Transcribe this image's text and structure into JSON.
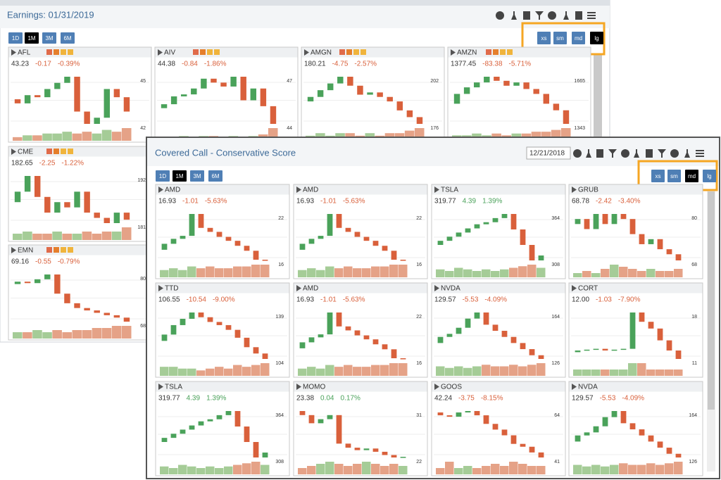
{
  "back": {
    "title": "Earnings: 01/31/2019",
    "periods": [
      "1D",
      "1M",
      "3M",
      "6M"
    ],
    "active_period": 1,
    "sizes": [
      "xs",
      "sm",
      "md",
      "lg"
    ],
    "active_size": 3,
    "tiles": [
      {
        "ticker": "AFL",
        "price": "43.23",
        "change": "-0.17",
        "pct": "-0.39%",
        "high": "45",
        "low": "42",
        "closes": [
          43.8,
          43.6,
          44.0,
          43.9,
          44.3,
          44.6,
          44.9,
          43.2,
          42.6,
          42.9,
          44.3,
          43.9,
          43.2
        ],
        "volumes": [
          2,
          3,
          3,
          4,
          4,
          5,
          4,
          5,
          4,
          6,
          5,
          7
        ]
      },
      {
        "ticker": "AIV",
        "price": "44.38",
        "change": "-0.84",
        "pct": "-1.86%",
        "high": "47",
        "low": "44",
        "closes": [
          45.2,
          45.4,
          45.8,
          45.9,
          46.2,
          46.7,
          46.5,
          46.3,
          46.8,
          45.6,
          46.2,
          45.3,
          44.4
        ],
        "volumes": [
          2,
          2,
          3,
          2,
          3,
          3,
          2,
          3,
          2,
          3,
          4,
          8
        ]
      },
      {
        "ticker": "AMGN",
        "price": "180.21",
        "change": "-4.75",
        "pct": "-2.57%",
        "high": "202",
        "low": "176",
        "closes": [
          190,
          192,
          195,
          198,
          201,
          197,
          193,
          194,
          192,
          190,
          186,
          183,
          180
        ],
        "volumes": [
          2,
          3,
          2,
          3,
          3,
          2,
          3,
          2,
          3,
          3,
          4,
          5
        ]
      },
      {
        "ticker": "AMZN",
        "price": "1377.45",
        "change": "-83.38",
        "pct": "-5.71%",
        "high": "1665",
        "low": "1343",
        "closes": [
          1500,
          1560,
          1600,
          1630,
          1665,
          1640,
          1610,
          1630,
          1590,
          1560,
          1500,
          1460,
          1377
        ],
        "volumes": [
          3,
          3,
          4,
          3,
          4,
          3,
          4,
          4,
          5,
          5,
          6,
          7
        ]
      },
      {
        "ticker": "CME",
        "price": "182.65",
        "change": "-2.25",
        "pct": "-1.22%",
        "high": "192",
        "low": "181",
        "closes": [
          186,
          188,
          191,
          187,
          184,
          186,
          185,
          188,
          184,
          183,
          182,
          184,
          182.65
        ],
        "volumes": [
          3,
          4,
          3,
          3,
          4,
          3,
          3,
          4,
          3,
          4,
          4,
          6
        ]
      },
      {
        "ticker": "EMN",
        "price": "69.16",
        "change": "-0.55",
        "pct": "-0.79%",
        "high": "80",
        "low": "68",
        "closes": [
          77,
          77.5,
          77.2,
          78,
          79,
          75,
          73,
          72,
          71.5,
          71,
          70.5,
          70,
          69.16
        ],
        "volumes": [
          3,
          3,
          4,
          3,
          4,
          3,
          4,
          4,
          5,
          5,
          6,
          6
        ]
      }
    ]
  },
  "front": {
    "title": "Covered Call - Conservative Score",
    "date": "12/21/2018",
    "periods": [
      "1D",
      "1M",
      "3M",
      "6M"
    ],
    "active_period": 1,
    "sizes": [
      "xs",
      "sm",
      "md",
      "lg"
    ],
    "active_size": 2,
    "tiles": [
      {
        "ticker": "AMD",
        "price": "16.93",
        "change": "-1.01",
        "pct": "-5.63%",
        "high": "22",
        "low": "16",
        "closes": [
          18.0,
          18.6,
          19.1,
          19.4,
          21.6,
          20.2,
          19.8,
          19.3,
          18.9,
          18.4,
          17.9,
          17.0,
          16.93
        ],
        "volumes": [
          4,
          5,
          4,
          6,
          5,
          6,
          5,
          5,
          6,
          6,
          7,
          7
        ]
      },
      {
        "ticker": "AMD",
        "price": "16.93",
        "change": "-1.01",
        "pct": "-5.63%",
        "high": "22",
        "low": "16",
        "closes": [
          18.0,
          18.6,
          19.1,
          19.4,
          21.6,
          20.2,
          19.8,
          19.3,
          18.9,
          18.4,
          17.9,
          17.0,
          16.93
        ],
        "volumes": [
          4,
          5,
          4,
          6,
          5,
          6,
          5,
          5,
          6,
          6,
          7,
          7
        ]
      },
      {
        "ticker": "TSLA",
        "price": "319.77",
        "change": "4.39",
        "pct": "1.39%",
        "high": "364",
        "low": "308",
        "closes": [
          330,
          334,
          338,
          342,
          346,
          350,
          352,
          356,
          360,
          345,
          330,
          315,
          319.77
        ],
        "volumes": [
          5,
          4,
          6,
          5,
          4,
          5,
          4,
          5,
          6,
          7,
          8,
          6
        ]
      },
      {
        "ticker": "GRUB",
        "price": "68.78",
        "change": "-2.42",
        "pct": "-3.40%",
        "high": "80",
        "low": "68",
        "closes": [
          76,
          77,
          75,
          78,
          76,
          78,
          77,
          74,
          72,
          73,
          71,
          70,
          68.78
        ],
        "volumes": [
          2,
          3,
          2,
          4,
          6,
          5,
          4,
          3,
          4,
          3,
          3,
          4
        ]
      },
      {
        "ticker": "TTD",
        "price": "106.55",
        "change": "-10.54",
        "pct": "-9.00%",
        "high": "139",
        "low": "104",
        "closes": [
          118,
          122,
          128,
          132,
          136,
          133,
          130,
          128,
          125,
          120,
          114,
          110,
          106.55
        ],
        "volumes": [
          5,
          5,
          4,
          4,
          3,
          4,
          5,
          4,
          6,
          5,
          6,
          7
        ]
      },
      {
        "ticker": "AMD",
        "price": "16.93",
        "change": "-1.01",
        "pct": "-5.63%",
        "high": "22",
        "low": "16",
        "closes": [
          18.0,
          18.6,
          19.1,
          19.4,
          21.6,
          20.2,
          19.8,
          19.3,
          18.9,
          18.4,
          17.9,
          17.0,
          16.93
        ],
        "volumes": [
          4,
          5,
          4,
          6,
          5,
          6,
          5,
          5,
          6,
          6,
          7,
          7
        ]
      },
      {
        "ticker": "NVDA",
        "price": "129.57",
        "change": "-5.53",
        "pct": "-4.09%",
        "high": "164",
        "low": "126",
        "closes": [
          140,
          144,
          146,
          150,
          156,
          160,
          152,
          148,
          144,
          140,
          136,
          132,
          129.57
        ],
        "volumes": [
          6,
          5,
          6,
          5,
          6,
          7,
          6,
          6,
          7,
          6,
          7,
          8
        ]
      },
      {
        "ticker": "CORT",
        "price": "12.00",
        "change": "-1.03",
        "pct": "-7.90%",
        "high": "18",
        "low": "11",
        "closes": [
          12.8,
          13.0,
          13.1,
          13.2,
          13.0,
          13.1,
          13.2,
          17.5,
          16.4,
          15.6,
          14.2,
          13.0,
          12.0
        ],
        "volumes": [
          1,
          1,
          1,
          1,
          1,
          1,
          2,
          2,
          1,
          1,
          1,
          1
        ]
      },
      {
        "ticker": "TSLA",
        "price": "319.77",
        "change": "4.39",
        "pct": "1.39%",
        "high": "364",
        "low": "308",
        "closes": [
          330,
          334,
          338,
          342,
          346,
          350,
          352,
          356,
          360,
          345,
          330,
          315,
          319.77
        ],
        "volumes": [
          5,
          4,
          6,
          5,
          4,
          5,
          4,
          5,
          6,
          7,
          8,
          6
        ]
      },
      {
        "ticker": "MOMO",
        "price": "23.38",
        "change": "0.04",
        "pct": "0.17%",
        "high": "31",
        "low": "22",
        "closes": [
          29,
          28.5,
          27.5,
          28,
          28.5,
          25,
          24.5,
          24.2,
          24.4,
          24.0,
          23.6,
          23.3,
          23.38
        ],
        "volumes": [
          3,
          4,
          5,
          6,
          5,
          4,
          5,
          6,
          5,
          4,
          5,
          4
        ]
      },
      {
        "ticker": "GOOS",
        "price": "42.24",
        "change": "-3.75",
        "pct": "-8.15%",
        "high": "64",
        "low": "41",
        "closes": [
          58,
          57,
          56.5,
          58,
          58.5,
          57,
          54,
          52,
          50,
          47,
          46,
          44,
          42.24
        ],
        "volumes": [
          3,
          6,
          3,
          4,
          3,
          4,
          5,
          4,
          6,
          5,
          4,
          4
        ]
      },
      {
        "ticker": "NVDA",
        "price": "129.57",
        "change": "-5.53",
        "pct": "-4.09%",
        "high": "164",
        "low": "126",
        "closes": [
          140,
          144,
          146,
          150,
          156,
          160,
          152,
          148,
          144,
          140,
          136,
          132,
          129.57
        ],
        "volumes": [
          6,
          5,
          6,
          5,
          6,
          7,
          6,
          6,
          7,
          6,
          7,
          8
        ]
      }
    ]
  }
}
